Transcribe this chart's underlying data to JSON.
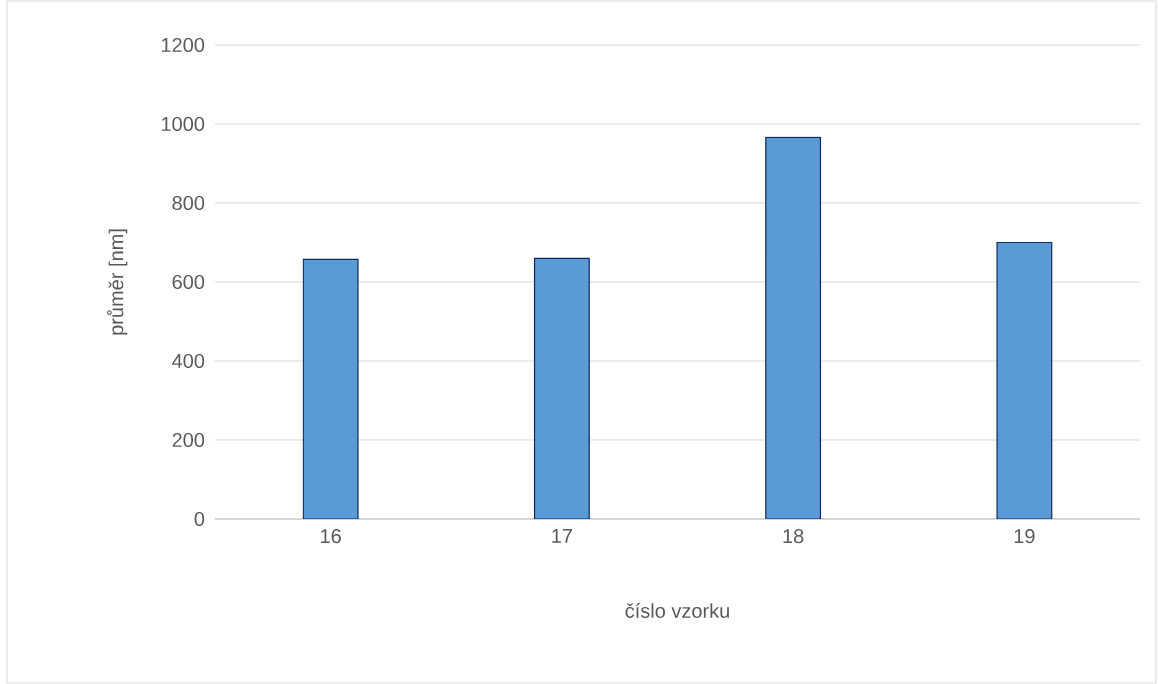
{
  "chart_data": {
    "type": "bar",
    "categories": [
      "16",
      "17",
      "18",
      "19"
    ],
    "values": [
      657,
      660,
      966,
      700
    ],
    "color": "#5b9bd5",
    "xlabel": "číslo vzorku",
    "ylabel": "průměr [nm]",
    "ylim": [
      0,
      1200
    ],
    "yticks": [
      0,
      200,
      400,
      600,
      800,
      1000,
      1200
    ],
    "grid": "y"
  }
}
